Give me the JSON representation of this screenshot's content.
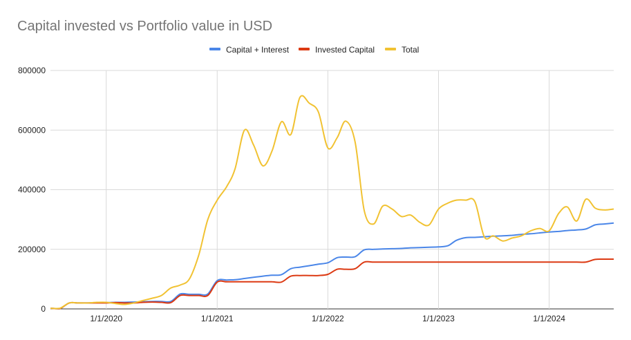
{
  "chart_data": {
    "type": "line",
    "title": "Capital invested vs Portfolio value in USD",
    "xlabel": "",
    "ylabel": "",
    "legend_position": "top",
    "grid": true,
    "x_range": [
      "2019-07-01",
      "2024-08-01"
    ],
    "ylim": [
      0,
      800000
    ],
    "y_ticks": [
      {
        "value": 0,
        "label": "0"
      },
      {
        "value": 200000,
        "label": "200000"
      },
      {
        "value": 400000,
        "label": "400000"
      },
      {
        "value": 600000,
        "label": "600000"
      },
      {
        "value": 800000,
        "label": "800000"
      }
    ],
    "x_ticks": [
      {
        "date": "2020-01-01",
        "label": "1/1/2020"
      },
      {
        "date": "2021-01-01",
        "label": "1/1/2021"
      },
      {
        "date": "2022-01-01",
        "label": "1/1/2022"
      },
      {
        "date": "2023-01-01",
        "label": "1/1/2023"
      },
      {
        "date": "2024-01-01",
        "label": "1/1/2024"
      }
    ],
    "x": [
      "2019-07-01",
      "2019-08-01",
      "2019-09-01",
      "2019-10-01",
      "2019-11-01",
      "2019-12-01",
      "2020-01-01",
      "2020-02-01",
      "2020-03-01",
      "2020-04-01",
      "2020-05-01",
      "2020-06-01",
      "2020-07-01",
      "2020-08-01",
      "2020-09-01",
      "2020-10-01",
      "2020-11-01",
      "2020-12-01",
      "2021-01-01",
      "2021-02-01",
      "2021-03-01",
      "2021-04-01",
      "2021-05-01",
      "2021-06-01",
      "2021-07-01",
      "2021-08-01",
      "2021-09-01",
      "2021-10-01",
      "2021-11-01",
      "2021-12-01",
      "2022-01-01",
      "2022-02-01",
      "2022-03-01",
      "2022-04-01",
      "2022-05-01",
      "2022-06-01",
      "2022-07-01",
      "2022-08-01",
      "2022-09-01",
      "2022-10-01",
      "2022-11-01",
      "2022-12-01",
      "2023-01-01",
      "2023-02-01",
      "2023-03-01",
      "2023-04-01",
      "2023-05-01",
      "2023-06-01",
      "2023-07-01",
      "2023-08-01",
      "2023-09-01",
      "2023-10-01",
      "2023-11-01",
      "2023-12-01",
      "2024-01-01",
      "2024-02-01",
      "2024-03-01",
      "2024-04-01",
      "2024-05-01",
      "2024-06-01",
      "2024-07-01",
      "2024-08-01"
    ],
    "series": [
      {
        "name": "Capital + Interest",
        "color": "#4a86e8",
        "values": [
          2000,
          1000,
          20000,
          20000,
          20000,
          21000,
          21000,
          22000,
          22000,
          23000,
          24000,
          25000,
          25000,
          25000,
          50000,
          49000,
          49000,
          50000,
          95000,
          97000,
          98000,
          102000,
          106000,
          110000,
          113000,
          115000,
          135000,
          140000,
          145000,
          150000,
          155000,
          172000,
          174000,
          175000,
          198000,
          200000,
          201000,
          202000,
          203000,
          205000,
          206000,
          207000,
          208000,
          212000,
          230000,
          239000,
          240000,
          242000,
          244000,
          245000,
          247000,
          250000,
          252000,
          255000,
          258000,
          260000,
          263000,
          265000,
          268000,
          282000,
          285000,
          288000
        ]
      },
      {
        "name": "Invested Capital",
        "color": "#dc3912",
        "values": [
          2000,
          1000,
          20000,
          20000,
          20000,
          20000,
          20000,
          21000,
          20000,
          20000,
          22000,
          23000,
          22000,
          21000,
          45000,
          45000,
          45000,
          45000,
          90000,
          91000,
          91000,
          91000,
          91000,
          91000,
          91000,
          90000,
          110000,
          112000,
          112000,
          112000,
          116000,
          133000,
          133000,
          135000,
          157000,
          157000,
          157000,
          157000,
          157000,
          157000,
          157000,
          157000,
          157000,
          157000,
          157000,
          157000,
          157000,
          157000,
          157000,
          157000,
          157000,
          157000,
          157000,
          157000,
          157000,
          157000,
          157000,
          157000,
          157000,
          166000,
          167000,
          167000
        ]
      },
      {
        "name": "Total",
        "color": "#f1c232",
        "values": [
          2000,
          2000,
          20000,
          20000,
          20000,
          22000,
          22000,
          18000,
          15000,
          20000,
          28000,
          36000,
          45000,
          70000,
          80000,
          100000,
          180000,
          300000,
          365000,
          410000,
          470000,
          600000,
          550000,
          480000,
          530000,
          628000,
          585000,
          710000,
          690000,
          660000,
          540000,
          575000,
          630000,
          560000,
          330000,
          285000,
          345000,
          335000,
          310000,
          315000,
          290000,
          282000,
          335000,
          355000,
          365000,
          365000,
          360000,
          242000,
          245000,
          228000,
          238000,
          245000,
          262000,
          270000,
          262000,
          320000,
          342000,
          295000,
          368000,
          338000,
          332000,
          335000
        ]
      }
    ]
  }
}
